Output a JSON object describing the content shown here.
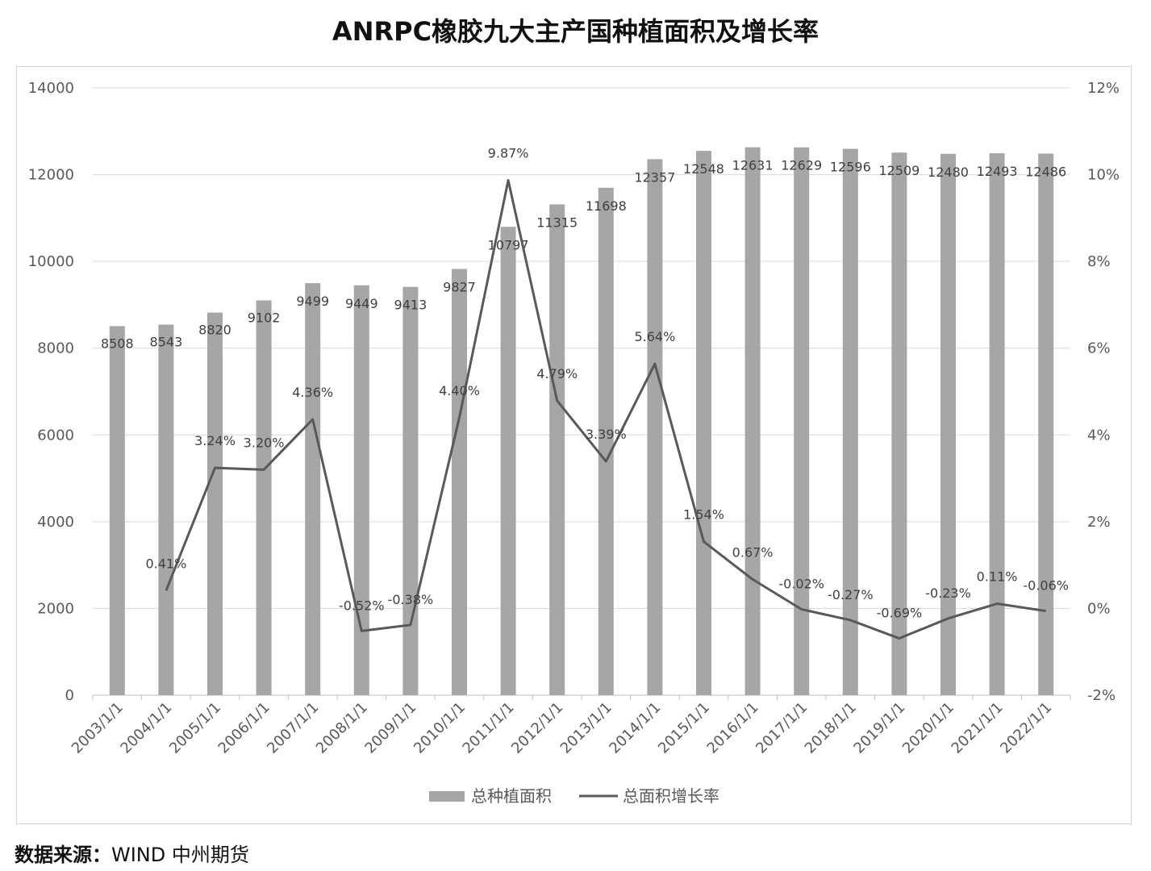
{
  "title": "ANRPC橡胶九大主产国种植面积及增长率",
  "source": {
    "label": "数据来源：",
    "text": "WIND  中州期货"
  },
  "chart_data": {
    "type": "bar",
    "title": "ANRPC橡胶九大主产国种植面积及增长率",
    "categories": [
      "2003/1/1",
      "2004/1/1",
      "2005/1/1",
      "2006/1/1",
      "2007/1/1",
      "2008/1/1",
      "2009/1/1",
      "2010/1/1",
      "2011/1/1",
      "2012/1/1",
      "2013/1/1",
      "2014/1/1",
      "2015/1/1",
      "2016/1/1",
      "2017/1/1",
      "2018/1/1",
      "2019/1/1",
      "2020/1/1",
      "2021/1/1",
      "2022/1/1"
    ],
    "series": [
      {
        "name": "总种植面积",
        "type": "bar",
        "axis": "left",
        "values": [
          8508,
          8543,
          8820,
          9102,
          9499,
          9449,
          9413,
          9827,
          10797,
          11315,
          11698,
          12357,
          12548,
          12631,
          12629,
          12596,
          12509,
          12480,
          12493,
          12486
        ],
        "labels": [
          "8508",
          "8543",
          "8820",
          "9102",
          "9499",
          "9449",
          "9413",
          "9827",
          "10797",
          "11315",
          "11698",
          "12357",
          "12548",
          "12631",
          "12629",
          "12596",
          "12509",
          "12480",
          "12493",
          "12486"
        ]
      },
      {
        "name": "总面积增长率",
        "type": "line",
        "axis": "right",
        "values": [
          null,
          0.41,
          3.24,
          3.2,
          4.36,
          -0.52,
          -0.38,
          4.4,
          9.87,
          4.79,
          3.39,
          5.64,
          1.54,
          0.67,
          -0.02,
          -0.27,
          -0.69,
          -0.23,
          0.11,
          -0.06
        ],
        "labels": [
          "",
          "0.41%",
          "3.24%",
          "3.20%",
          "4.36%",
          "-0.52%",
          "-0.38%",
          "4.40%",
          "9.87%",
          "4.79%",
          "3.39%",
          "5.64%",
          "1.54%",
          "0.67%",
          "-0.02%",
          "-0.27%",
          "-0.69%",
          "-0.23%",
          "0.11%",
          "-0.06%"
        ]
      }
    ],
    "ylim_left": [
      0,
      14000
    ],
    "yticks_left": [
      "0",
      "2000",
      "4000",
      "6000",
      "8000",
      "10000",
      "12000",
      "14000"
    ],
    "ylim_right": [
      -2,
      12
    ],
    "yticks_right": [
      "-2%",
      "0%",
      "2%",
      "4%",
      "6%",
      "8%",
      "10%",
      "12%"
    ],
    "grid": true,
    "legend": "bottom",
    "colors": {
      "bar": "#a6a6a6",
      "line": "#595959",
      "grid": "#d9d9d9",
      "text": "#595959"
    }
  }
}
